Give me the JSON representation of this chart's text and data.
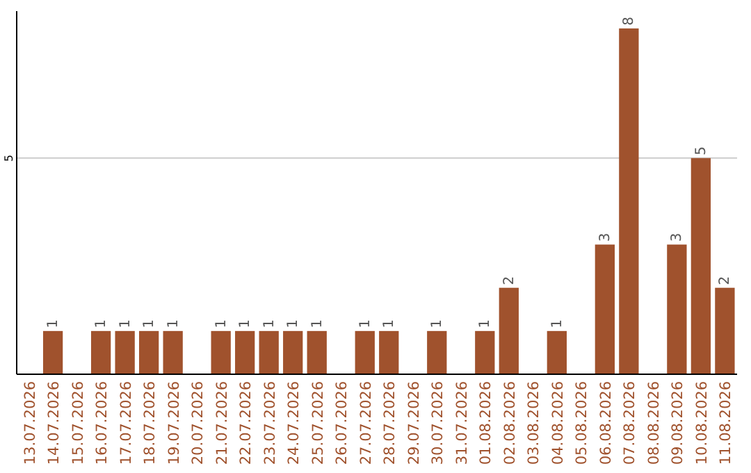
{
  "chart_data": {
    "type": "bar",
    "categories": [
      "13.07.2026",
      "14.07.2026",
      "15.07.2026",
      "16.07.2026",
      "17.07.2026",
      "18.07.2026",
      "19.07.2026",
      "20.07.2026",
      "21.07.2026",
      "22.07.2026",
      "23.07.2026",
      "24.07.2026",
      "25.07.2026",
      "26.07.2026",
      "27.07.2026",
      "28.07.2026",
      "29.07.2026",
      "30.07.2026",
      "31.07.2026",
      "01.08.2026",
      "02.08.2026",
      "03.08.2026",
      "04.08.2026",
      "05.08.2026",
      "06.08.2026",
      "07.08.2026",
      "08.08.2026",
      "09.08.2026",
      "10.08.2026",
      "11.08.2026"
    ],
    "values": [
      0,
      1,
      0,
      1,
      1,
      1,
      1,
      0,
      1,
      1,
      1,
      1,
      1,
      0,
      1,
      1,
      0,
      1,
      0,
      1,
      2,
      0,
      1,
      0,
      3,
      8,
      0,
      3,
      5,
      2
    ],
    "value_labels": [
      null,
      "1",
      null,
      "1",
      "1",
      "1",
      "1",
      null,
      "1",
      "1",
      "1",
      "1",
      "1",
      null,
      "1",
      "1",
      null,
      "1",
      null,
      "1",
      "2",
      null,
      "1",
      null,
      "3",
      "8",
      null,
      "3",
      "5",
      "2"
    ],
    "color": "#a0522d",
    "ylim": [
      0,
      8.4
    ],
    "yticks": [
      5
    ],
    "grid": "y"
  }
}
